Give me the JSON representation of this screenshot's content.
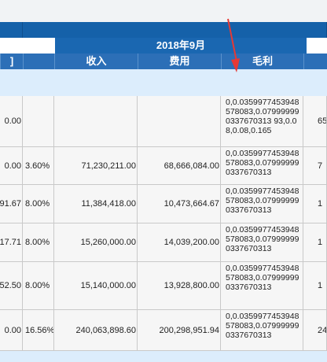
{
  "header": {
    "month_group": "2018年9月",
    "left_partial_label": "]",
    "columns": [
      "收入",
      "费用",
      "毛利"
    ]
  },
  "rows": [
    {
      "col0": "0.00",
      "pct": "",
      "income": "",
      "expense": "",
      "margin": "0,0.0359977453948578083,0.079999990337670313 93,0.08,0.08,0.165",
      "extra": "65"
    },
    {
      "col0": "0.00",
      "pct": "3.60%",
      "income": "71,230,211.00",
      "expense": "68,666,084.00",
      "margin": "0,0.0359977453948578083,0.079999990337670313",
      "extra": "7"
    },
    {
      "col0": "91.67",
      "pct": "8.00%",
      "income": "11,384,418.00",
      "expense": "10,473,664.67",
      "margin": "0,0.0359977453948578083,0.079999990337670313",
      "extra": "1"
    },
    {
      "col0": "17.71",
      "pct": "8.00%",
      "income": "15,260,000.00",
      "expense": "14,039,200.00",
      "margin": "0,0.0359977453948578083,0.079999990337670313",
      "extra": "1"
    },
    {
      "col0": "52.50",
      "pct": "8.00%",
      "income": "15,140,000.00",
      "expense": "13,928,800.00",
      "margin": "0,0.0359977453948578083,0.079999990337670313",
      "extra": "1"
    },
    {
      "col0": "0.00",
      "pct": "16.56%",
      "income": "240,063,898.60",
      "expense": "200,298,951.94",
      "margin": "0,0.0359977453948578083,0.079999990337670313",
      "extra": "24"
    }
  ],
  "colors": {
    "header_dark": "#1561a9",
    "header": "#2c6fb7",
    "stripe": "#dcedfc",
    "arrow": "#e53935"
  }
}
